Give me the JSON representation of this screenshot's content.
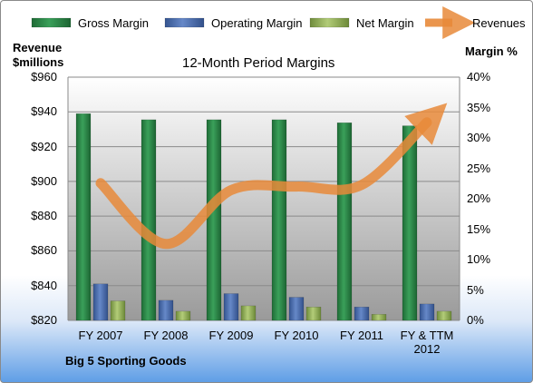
{
  "chart_data": {
    "type": "bar",
    "title": "12-Month Period Margins",
    "company": "Big 5 Sporting Goods",
    "categories": [
      "FY 2007",
      "FY 2008",
      "FY 2009",
      "FY 2010",
      "FY 2011",
      "FY & TTM 2012"
    ],
    "series": [
      {
        "name": "Gross Margin",
        "type": "bar",
        "axis": "right",
        "color": "#2e8b4a",
        "values": [
          34.0,
          33.0,
          33.0,
          33.0,
          32.5,
          32.0
        ]
      },
      {
        "name": "Operating Margin",
        "type": "bar",
        "axis": "right",
        "color": "#4f72b8",
        "values": [
          6.0,
          3.3,
          4.4,
          3.8,
          2.2,
          2.7
        ]
      },
      {
        "name": "Net Margin",
        "type": "bar",
        "axis": "right",
        "color": "#98b95a",
        "values": [
          3.2,
          1.5,
          2.4,
          2.2,
          1.0,
          1.5
        ]
      },
      {
        "name": "Revenues",
        "type": "line",
        "axis": "left",
        "color": "#e8893a",
        "values": [
          899,
          864,
          895,
          897,
          898,
          934
        ]
      }
    ],
    "y_left": {
      "label_line1": "Revenue",
      "label_line2": "$millions",
      "ylim": [
        820,
        960
      ],
      "ticks": [
        "$820",
        "$840",
        "$860",
        "$880",
        "$900",
        "$920",
        "$940",
        "$960"
      ]
    },
    "y_right": {
      "label": "Margin %",
      "ylim": [
        0,
        40
      ],
      "ticks": [
        "0%",
        "5%",
        "10%",
        "15%",
        "20%",
        "25%",
        "30%",
        "35%",
        "40%"
      ]
    },
    "x_ticks": [
      [
        "FY 2007"
      ],
      [
        "FY 2008"
      ],
      [
        "FY 2009"
      ],
      [
        "FY 2010"
      ],
      [
        "FY 2011"
      ],
      [
        "FY & TTM",
        "2012"
      ]
    ],
    "legend_position": "top",
    "grid": true
  }
}
